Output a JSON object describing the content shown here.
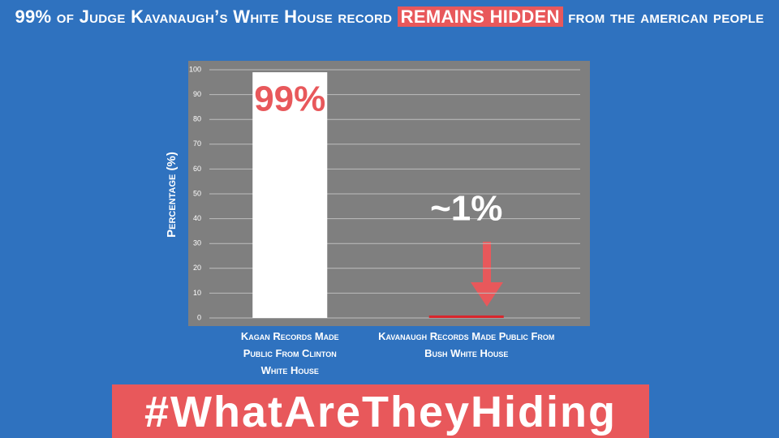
{
  "chart_data": {
    "type": "bar",
    "title_parts": [
      "99% of Judge Kavanaugh’s White House record",
      "REMAINS HIDDEN",
      "from the american people"
    ],
    "y_label": "Percentage (%)",
    "categories": [
      "Kagan Records Made Public From Clinton White House",
      "Kavanaugh Records Made Public From Bush White House"
    ],
    "values": [
      99,
      1
    ],
    "value_labels": [
      "99%",
      "~1%"
    ],
    "colors": [
      "#ffffff",
      "#d9262c"
    ],
    "ylim": [
      0,
      100
    ],
    "yticks": [
      0,
      10,
      20,
      30,
      40,
      50,
      60,
      70,
      80,
      90,
      100
    ],
    "grid": true
  },
  "banner": "#WhatAreTheyHiding"
}
